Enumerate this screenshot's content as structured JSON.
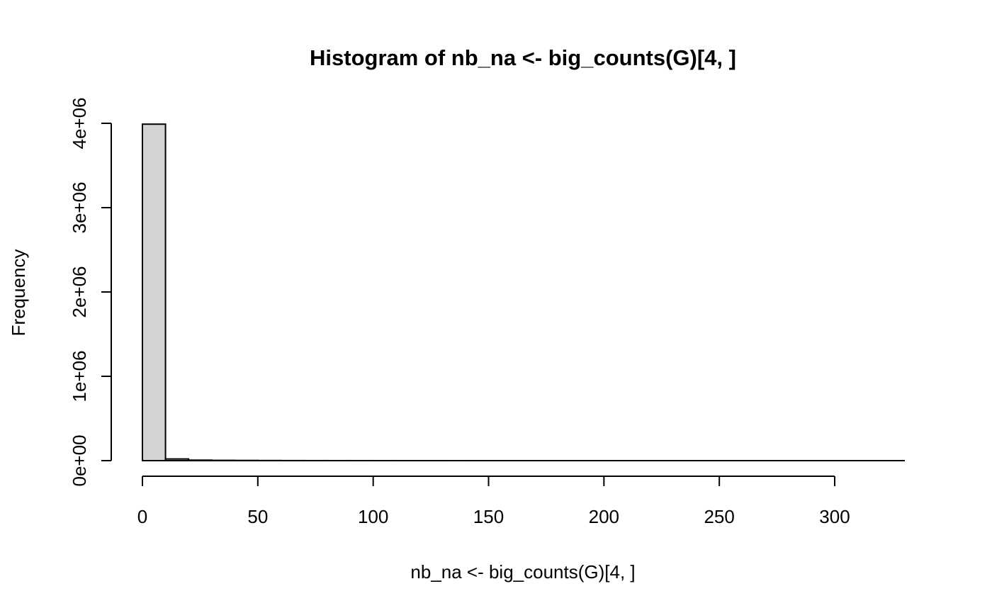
{
  "chart_data": {
    "type": "bar",
    "title": "Histogram of nb_na <- big_counts(G)[4, ]",
    "xlabel": "nb_na <- big_counts(G)[4, ]",
    "ylabel": "Frequency",
    "bins": [
      {
        "start": 0,
        "end": 10,
        "count": 3990000
      },
      {
        "start": 10,
        "end": 20,
        "count": 20000
      },
      {
        "start": 20,
        "end": 30,
        "count": 6000
      },
      {
        "start": 30,
        "end": 40,
        "count": 3500
      },
      {
        "start": 40,
        "end": 50,
        "count": 2500
      },
      {
        "start": 50,
        "end": 60,
        "count": 1500
      },
      {
        "start": 60,
        "end": 70,
        "count": 800
      },
      {
        "start": 70,
        "end": 80,
        "count": 500
      },
      {
        "start": 80,
        "end": 90,
        "count": 300
      },
      {
        "start": 90,
        "end": 100,
        "count": 200
      },
      {
        "start": 100,
        "end": 110,
        "count": 150
      },
      {
        "start": 110,
        "end": 120,
        "count": 100
      },
      {
        "start": 120,
        "end": 130,
        "count": 80
      },
      {
        "start": 130,
        "end": 140,
        "count": 60
      },
      {
        "start": 140,
        "end": 150,
        "count": 50
      },
      {
        "start": 150,
        "end": 160,
        "count": 40
      },
      {
        "start": 160,
        "end": 170,
        "count": 30
      },
      {
        "start": 170,
        "end": 180,
        "count": 25
      },
      {
        "start": 180,
        "end": 190,
        "count": 20
      },
      {
        "start": 190,
        "end": 200,
        "count": 15
      },
      {
        "start": 200,
        "end": 210,
        "count": 12
      },
      {
        "start": 210,
        "end": 220,
        "count": 10
      },
      {
        "start": 220,
        "end": 230,
        "count": 8
      },
      {
        "start": 230,
        "end": 240,
        "count": 6
      },
      {
        "start": 240,
        "end": 250,
        "count": 5
      },
      {
        "start": 250,
        "end": 260,
        "count": 4
      },
      {
        "start": 260,
        "end": 270,
        "count": 3
      },
      {
        "start": 270,
        "end": 280,
        "count": 3
      },
      {
        "start": 280,
        "end": 290,
        "count": 2
      },
      {
        "start": 290,
        "end": 300,
        "count": 2
      },
      {
        "start": 300,
        "end": 310,
        "count": 1
      },
      {
        "start": 310,
        "end": 320,
        "count": 1
      },
      {
        "start": 320,
        "end": 330,
        "count": 1
      }
    ],
    "xlim": [
      0,
      330
    ],
    "ylim": [
      0,
      4000000
    ],
    "x_ticks": [
      0,
      50,
      100,
      150,
      200,
      250,
      300
    ],
    "x_tick_labels": [
      "0",
      "50",
      "100",
      "150",
      "200",
      "250",
      "300"
    ],
    "y_ticks": [
      0,
      1000000,
      2000000,
      3000000,
      4000000
    ],
    "y_tick_labels": [
      "0e+00",
      "1e+06",
      "2e+06",
      "3e+06",
      "4e+06"
    ],
    "grid": false,
    "legend": "none"
  },
  "colors": {
    "bar_fill": "#d3d3d3",
    "bar_stroke": "#000000",
    "background": "#ffffff"
  }
}
